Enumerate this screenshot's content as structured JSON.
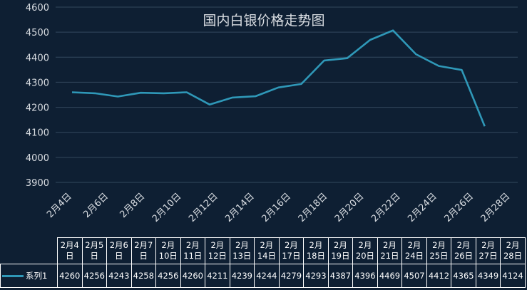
{
  "chart_data": {
    "type": "line",
    "title": "国内白银价格走势图",
    "categories": [
      "2月4日",
      "2月5日",
      "2月6日",
      "2月7日",
      "2月10日",
      "2月11日",
      "2月12日",
      "2月13日",
      "2月14日",
      "2月17日",
      "2月18日",
      "2月19日",
      "2月20日",
      "2月21日",
      "2月24日",
      "2月25日",
      "2月26日",
      "2月27日",
      "2月28日"
    ],
    "table_headers": [
      [
        "2月4",
        "日"
      ],
      [
        "2月5",
        "日"
      ],
      [
        "2月6",
        "日"
      ],
      [
        "2月7",
        "日"
      ],
      [
        "2月",
        "10日"
      ],
      [
        "2月",
        "11日"
      ],
      [
        "2月",
        "12日"
      ],
      [
        "2月",
        "13日"
      ],
      [
        "2月",
        "14日"
      ],
      [
        "2月",
        "17日"
      ],
      [
        "2月",
        "18日"
      ],
      [
        "2月",
        "19日"
      ],
      [
        "2月",
        "20日"
      ],
      [
        "2月",
        "21日"
      ],
      [
        "2月",
        "24日"
      ],
      [
        "2月",
        "25日"
      ],
      [
        "2月",
        "26日"
      ],
      [
        "2月",
        "27日"
      ],
      [
        "2月",
        "28日"
      ]
    ],
    "axis_tick_labels": [
      "2月4日",
      "2月6日",
      "2月8日",
      "2月10日",
      "2月12日",
      "2月14日",
      "2月16日",
      "2月18日",
      "2月20日",
      "2月22日",
      "2月24日",
      "2月26日",
      "2月28日"
    ],
    "series": [
      {
        "name": "系列1",
        "color": "#2f98b8",
        "values": [
          4260,
          4256,
          4243,
          4258,
          4256,
          4260,
          4211,
          4239,
          4244,
          4279,
          4293,
          4387,
          4396,
          4469,
          4507,
          4412,
          4365,
          4349,
          4124
        ]
      }
    ],
    "ylim": [
      3900,
      4600
    ],
    "yticks": [
      3900,
      4000,
      4100,
      4200,
      4300,
      4400,
      4500,
      4600
    ],
    "grid": true
  }
}
